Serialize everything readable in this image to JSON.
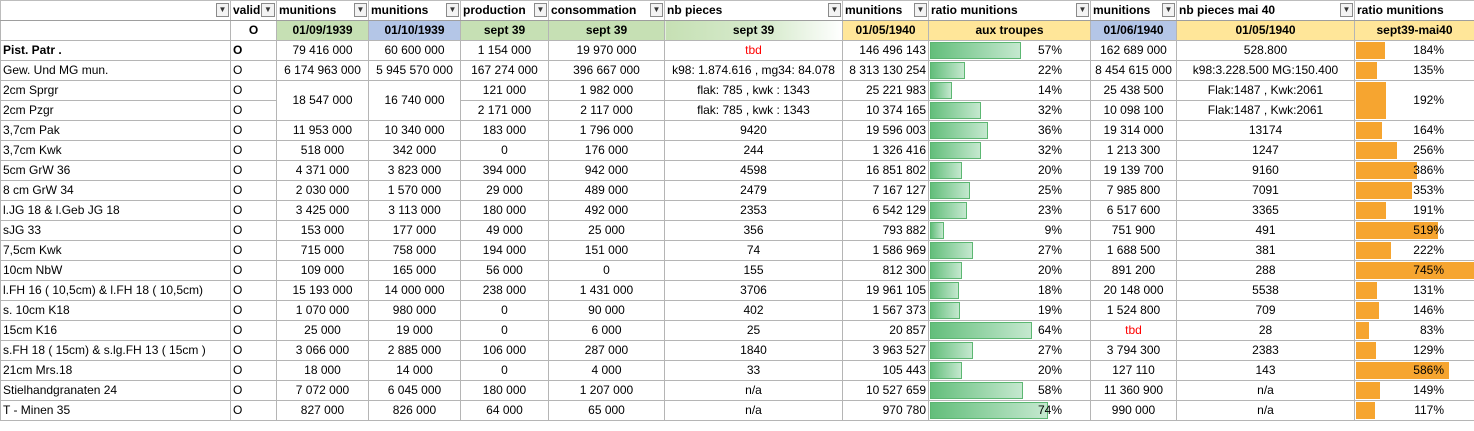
{
  "headers": [
    {
      "label": "",
      "filter": "plain"
    },
    {
      "label": "valid",
      "filter": "active"
    },
    {
      "label": "munitions",
      "filter": "plain"
    },
    {
      "label": "munitions",
      "filter": "plain"
    },
    {
      "label": "production",
      "filter": "plain"
    },
    {
      "label": "consommation",
      "filter": "plain"
    },
    {
      "label": "nb pieces",
      "filter": "plain"
    },
    {
      "label": "munitions",
      "filter": "plain"
    },
    {
      "label": "ratio munitions",
      "filter": "plain"
    },
    {
      "label": "munitions",
      "filter": "plain"
    },
    {
      "label": "nb pieces mai 40",
      "filter": "plain"
    },
    {
      "label": "ratio munitions",
      "filter": "none"
    }
  ],
  "subheaders": [
    "",
    "O",
    "01/09/1939",
    "01/10/1939",
    "sept 39",
    "sept 39",
    "sept 39",
    "01/05/1940",
    "aux troupes",
    "01/06/1940",
    "01/05/1940",
    "sept39-mai40"
  ],
  "rows": [
    {
      "name": "Pist. Patr .",
      "valid": "O",
      "m1": "79 416 000",
      "m2": "60 600 000",
      "prod": "1 154 000",
      "cons": "19 970 000",
      "pieces": "tbd",
      "m3": "146 496 143",
      "ratio": "57%",
      "ratio_value": 57,
      "m4": "162 689 000",
      "pieces2": "528.800",
      "ratio2": "184%",
      "ratio2_value": 184
    },
    {
      "name": "Gew. Und MG mun.",
      "valid": "O",
      "m1": "6 174 963 000",
      "m2": "5 945 570 000",
      "prod": "167 274 000",
      "cons": "396 667 000",
      "pieces": "k98: 1.874.616 , mg34: 84.078",
      "m3": "8 313 130 254",
      "ratio": "22%",
      "ratio_value": 22,
      "m4": "8 454 615 000",
      "pieces2": "k98:3.228.500 MG:150.400",
      "ratio2": "135%",
      "ratio2_value": 135
    },
    {
      "name": "2cm Sprgr",
      "valid": "O",
      "m1": "18 547 000",
      "m2": "16 740 000",
      "prod": "121 000",
      "cons": "1 982 000",
      "pieces": "flak: 785 , kwk : 1343",
      "m3": "25 221 983",
      "ratio": "14%",
      "ratio_value": 14,
      "m4": "25 438 500",
      "pieces2": "Flak:1487 , Kwk:2061",
      "ratio2": "192%",
      "ratio2_value": 192
    },
    {
      "name": "2cm Pzgr",
      "valid": "O",
      "prod": "2 171 000",
      "cons": "2 117 000",
      "pieces": "flak: 785 , kwk : 1343",
      "m3": "10 374 165",
      "ratio": "32%",
      "ratio_value": 32,
      "m4": "10 098 100",
      "pieces2": "Flak:1487 , Kwk:2061"
    },
    {
      "name": "3,7cm Pak",
      "valid": "O",
      "m1": "11 953 000",
      "m2": "10 340 000",
      "prod": "183 000",
      "cons": "1 796 000",
      "pieces": "9420",
      "m3": "19 596 003",
      "ratio": "36%",
      "ratio_value": 36,
      "m4": "19 314 000",
      "pieces2": "13174",
      "ratio2": "164%",
      "ratio2_value": 164
    },
    {
      "name": "3,7cm Kwk",
      "valid": "O",
      "m1": "518 000",
      "m2": "342 000",
      "prod": "0",
      "cons": "176 000",
      "pieces": "244",
      "m3": "1 326 416",
      "ratio": "32%",
      "ratio_value": 32,
      "m4": "1 213 300",
      "pieces2": "1247",
      "ratio2": "256%",
      "ratio2_value": 256
    },
    {
      "name": "5cm GrW 36",
      "valid": "O",
      "m1": "4 371 000",
      "m2": "3 823 000",
      "prod": "394 000",
      "cons": "942 000",
      "pieces": "4598",
      "m3": "16 851 802",
      "ratio": "20%",
      "ratio_value": 20,
      "m4": "19 139 700",
      "pieces2": "9160",
      "ratio2": "386%",
      "ratio2_value": 386
    },
    {
      "name": "8 cm GrW 34",
      "valid": "O",
      "m1": "2 030 000",
      "m2": "1 570 000",
      "prod": "29 000",
      "cons": "489 000",
      "pieces": "2479",
      "m3": "7 167 127",
      "ratio": "25%",
      "ratio_value": 25,
      "m4": "7 985 800",
      "pieces2": "7091",
      "ratio2": "353%",
      "ratio2_value": 353
    },
    {
      "name": "l.JG 18 & l.Geb JG 18",
      "valid": "O",
      "m1": "3 425 000",
      "m2": "3 113 000",
      "prod": "180 000",
      "cons": "492 000",
      "pieces": "2353",
      "m3": "6 542 129",
      "ratio": "23%",
      "ratio_value": 23,
      "m4": "6 517 600",
      "pieces2": "3365",
      "ratio2": "191%",
      "ratio2_value": 191
    },
    {
      "name": "sJG 33",
      "valid": "O",
      "m1": "153 000",
      "m2": "177 000",
      "prod": "49 000",
      "cons": "25 000",
      "pieces": "356",
      "m3": "793 882",
      "ratio": "9%",
      "ratio_value": 9,
      "m4": "751 900",
      "pieces2": "491",
      "ratio2": "519%",
      "ratio2_value": 519
    },
    {
      "name": "7,5cm Kwk",
      "valid": "O",
      "m1": "715 000",
      "m2": "758 000",
      "prod": "194 000",
      "cons": "151 000",
      "pieces": "74",
      "m3": "1 586 969",
      "ratio": "27%",
      "ratio_value": 27,
      "m4": "1 688 500",
      "pieces2": "381",
      "ratio2": "222%",
      "ratio2_value": 222
    },
    {
      "name": "10cm NbW",
      "valid": "O",
      "m1": "109 000",
      "m2": "165 000",
      "prod": "56 000",
      "cons": "0",
      "pieces": "155",
      "m3": "812 300",
      "ratio": "20%",
      "ratio_value": 20,
      "m4": "891 200",
      "pieces2": "288",
      "ratio2": "745%",
      "ratio2_value": 745
    },
    {
      "name": "l.FH 16 ( 10,5cm) & l.FH 18 ( 10,5cm)",
      "valid": "O",
      "m1": "15 193 000",
      "m2": "14 000 000",
      "prod": "238 000",
      "cons": "1 431 000",
      "pieces": "3706",
      "m3": "19 961 105",
      "ratio": "18%",
      "ratio_value": 18,
      "m4": "20 148 000",
      "pieces2": "5538",
      "ratio2": "131%",
      "ratio2_value": 131
    },
    {
      "name": "s. 10cm K18",
      "valid": "O",
      "m1": "1 070 000",
      "m2": "980 000",
      "prod": "0",
      "cons": "90 000",
      "pieces": "402",
      "m3": "1 567 373",
      "ratio": "19%",
      "ratio_value": 19,
      "m4": "1 524 800",
      "pieces2": "709",
      "ratio2": "146%",
      "ratio2_value": 146
    },
    {
      "name": "15cm K16",
      "valid": "O",
      "m1": "25 000",
      "m2": "19 000",
      "prod": "0",
      "cons": "6 000",
      "pieces": "25",
      "m3": "20 857",
      "ratio": "64%",
      "ratio_value": 64,
      "m4": "tbd",
      "pieces2": "28",
      "ratio2": "83%",
      "ratio2_value": 83
    },
    {
      "name": "s.FH 18 ( 15cm) & s.lg.FH 13 ( 15cm )",
      "valid": "O",
      "m1": "3 066 000",
      "m2": "2 885 000",
      "prod": "106 000",
      "cons": "287 000",
      "pieces": "1840",
      "m3": "3 963 527",
      "ratio": "27%",
      "ratio_value": 27,
      "m4": "3 794 300",
      "pieces2": "2383",
      "ratio2": "129%",
      "ratio2_value": 129
    },
    {
      "name": "21cm Mrs.18",
      "valid": "O",
      "m1": "18 000",
      "m2": "14 000",
      "prod": "0",
      "cons": "4 000",
      "pieces": "33",
      "m3": "105 443",
      "ratio": "20%",
      "ratio_value": 20,
      "m4": "127 110",
      "pieces2": "143",
      "ratio2": "586%",
      "ratio2_value": 586
    },
    {
      "name": "Stielhandgranaten 24",
      "valid": "O",
      "m1": "7 072 000",
      "m2": "6 045 000",
      "prod": "180 000",
      "cons": "1 207 000",
      "pieces": "n/a",
      "m3": "10 527 659",
      "ratio": "58%",
      "ratio_value": 58,
      "m4": "11 360 900",
      "pieces2": "n/a",
      "ratio2": "149%",
      "ratio2_value": 149
    },
    {
      "name": "T - Minen 35",
      "valid": "O",
      "m1": "827 000",
      "m2": "826 000",
      "prod": "64 000",
      "cons": "65 000",
      "pieces": "n/a",
      "m3": "970 780",
      "ratio": "74%",
      "ratio_value": 74,
      "m4": "990 000",
      "pieces2": "n/a",
      "ratio2": "117%",
      "ratio2_value": 117
    }
  ],
  "colors": {
    "green_header": "#c6e0b4",
    "blue_header": "#b4c6e7",
    "yellow_header": "#ffe699",
    "databar_green": "#63be7b",
    "databar_orange": "#f6a530",
    "tbd_red": "#ff0000"
  }
}
